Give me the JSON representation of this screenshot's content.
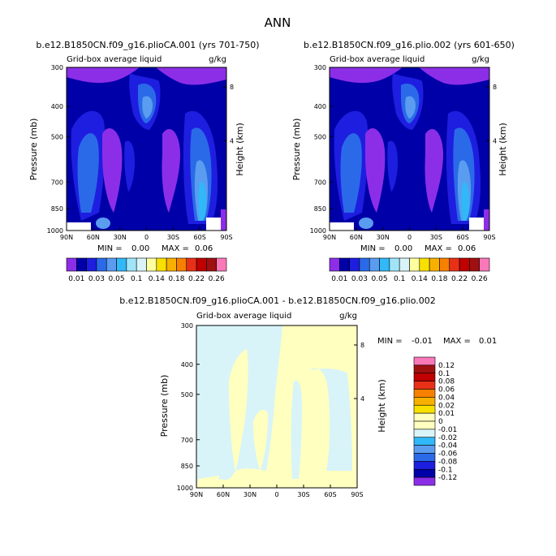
{
  "page_title": "ANN",
  "palette": {
    "levels": [
      "0.01",
      "0.03",
      "0.05",
      "0.1",
      "0.14",
      "0.18",
      "0.22",
      "0.26"
    ],
    "colors": [
      "#8c2ee8",
      "#0000a8",
      "#1e1ee0",
      "#2a6ae8",
      "#5a9cf0",
      "#30b8f8",
      "#a0e4f8",
      "#d8f4f8",
      "#ffffa0",
      "#f8e000",
      "#f8b000",
      "#f88000",
      "#e83018",
      "#c00000",
      "#a01010",
      "#f878b8"
    ]
  },
  "diff_palette": {
    "labels": [
      "0.12",
      "0.1",
      "0.08",
      "0.06",
      "0.04",
      "0.02",
      "0.01",
      "0",
      "-0.01",
      "-0.02",
      "-0.04",
      "-0.06",
      "-0.08",
      "-0.1",
      "-0.12"
    ],
    "colors": [
      "#f878b8",
      "#a01010",
      "#c00000",
      "#e83018",
      "#f88000",
      "#f8b000",
      "#f8e000",
      "#ffffc0",
      "#ffffc0",
      "#d8f4f8",
      "#30b8f8",
      "#5a9cf0",
      "#2a6ae8",
      "#1e1ee0",
      "#0000a8",
      "#8c2ee8"
    ]
  },
  "chart_data": [
    {
      "type": "heatmap",
      "title": "b.e12.B1850CN.f09_g16.plioCA.001 (yrs 701-750)",
      "subtitle_left": "Grid-box average liquid",
      "subtitle_right": "g/kg",
      "xlabel": "",
      "ylabel": "Pressure (mb)",
      "ylabel_right": "Height (km)",
      "x_ticks": [
        "90N",
        "60N",
        "30N",
        "0",
        "30S",
        "60S",
        "90S"
      ],
      "y_ticks": [
        "300",
        "400",
        "500",
        "700",
        "850",
        "1000"
      ],
      "y_right_ticks": [
        "8",
        "4"
      ],
      "xlim": [
        "90N",
        "90S"
      ],
      "ylim": [
        1000,
        300
      ],
      "min_label": "MIN =",
      "min": "0.00",
      "max_label": "MAX =",
      "max": "0.06"
    },
    {
      "type": "heatmap",
      "title": "b.e12.B1850CN.f09_g16.plio.002 (yrs 601-650)",
      "subtitle_left": "Grid-box average liquid",
      "subtitle_right": "g/kg",
      "xlabel": "",
      "ylabel": "Pressure (mb)",
      "ylabel_right": "Height (km)",
      "x_ticks": [
        "90N",
        "60N",
        "30N",
        "0",
        "30S",
        "60S",
        "90S"
      ],
      "y_ticks": [
        "300",
        "400",
        "500",
        "700",
        "850",
        "1000"
      ],
      "y_right_ticks": [
        "8",
        "4"
      ],
      "xlim": [
        "90N",
        "90S"
      ],
      "ylim": [
        1000,
        300
      ],
      "min_label": "MIN =",
      "min": "0.00",
      "max_label": "MAX =",
      "max": "0.06"
    },
    {
      "type": "heatmap",
      "title": "b.e12.B1850CN.f09_g16.plioCA.001 - b.e12.B1850CN.f09_g16.plio.002",
      "subtitle_left": "Grid-box average liquid",
      "subtitle_right": "g/kg",
      "xlabel": "",
      "ylabel": "Pressure (mb)",
      "ylabel_right": "Height (km)",
      "x_ticks": [
        "90N",
        "60N",
        "30N",
        "0",
        "30S",
        "60S",
        "90S"
      ],
      "y_ticks": [
        "300",
        "400",
        "500",
        "700",
        "850",
        "1000"
      ],
      "y_right_ticks": [
        "8",
        "4"
      ],
      "xlim": [
        "90N",
        "90S"
      ],
      "ylim": [
        1000,
        300
      ],
      "min_label": "MIN =",
      "min": "-0.01",
      "max_label": "MAX =",
      "max": "0.01"
    }
  ]
}
